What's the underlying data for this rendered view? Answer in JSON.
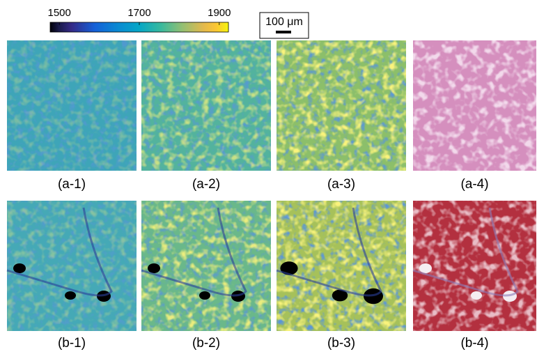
{
  "colorbar": {
    "lim": [
      1477,
      1923
    ],
    "ticks": [
      1500,
      1700,
      1900
    ]
  },
  "scale_bar": {
    "label": "100 μm"
  },
  "panels": [
    {
      "label": "(a-1)"
    },
    {
      "label": "(a-2)"
    },
    {
      "label": "(a-3)"
    },
    {
      "label": "(a-4)"
    },
    {
      "label": "(b-1)"
    },
    {
      "label": "(b-2)"
    },
    {
      "label": "(b-3)"
    },
    {
      "label": "(b-4)"
    }
  ]
}
